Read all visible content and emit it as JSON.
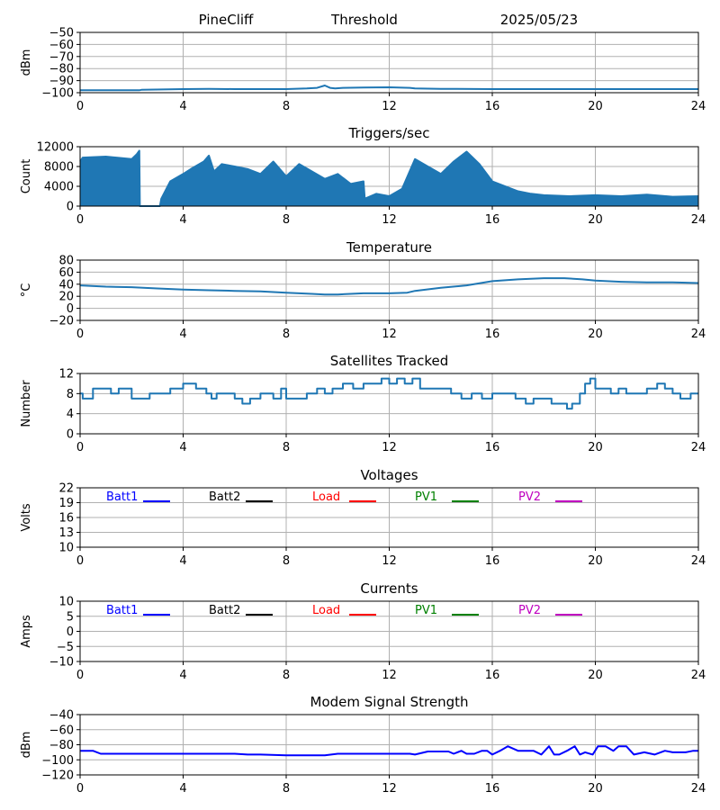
{
  "header": {
    "site": "PineCliff",
    "mode": "Threshold",
    "date": "2025/05/23"
  },
  "colors": {
    "series_default": "#1f77b4",
    "grid": "#b0b0b0",
    "batt1": "#0000ff",
    "batt2": "#000000",
    "load": "#ff0000",
    "pv1": "#008000",
    "pv2": "#bf00bf",
    "modem": "#0000ff"
  },
  "chart_data": [
    {
      "id": "threshold",
      "type": "line",
      "title": "",
      "ylabel": "dBm",
      "xlim": [
        0,
        24
      ],
      "xticks": [
        0,
        4,
        8,
        12,
        16,
        20,
        24
      ],
      "ylim": [
        -100,
        -50
      ],
      "yticks": [
        -100,
        -90,
        -80,
        -70,
        -60,
        -50
      ],
      "series": [
        {
          "color": "#1f77b4",
          "x": [
            0,
            2.3,
            2.4,
            4,
            5,
            6,
            7,
            8,
            8.8,
            9.2,
            9.5,
            9.7,
            9.9,
            10.2,
            11,
            12,
            12.8,
            13,
            14,
            16,
            18,
            20,
            22,
            24
          ],
          "y": [
            -98,
            -98,
            -97.5,
            -97,
            -96.8,
            -97,
            -97,
            -97,
            -96.5,
            -96,
            -94,
            -96,
            -96.5,
            -96,
            -95.7,
            -95.5,
            -96,
            -96.5,
            -96.8,
            -97,
            -97,
            -97,
            -97,
            -97
          ]
        }
      ]
    },
    {
      "id": "triggers",
      "type": "line",
      "title": "Triggers/sec",
      "ylabel": "Count",
      "xlim": [
        0,
        24
      ],
      "xticks": [
        0,
        4,
        8,
        12,
        16,
        20,
        24
      ],
      "ylim": [
        0,
        12000
      ],
      "yticks": [
        0,
        4000,
        8000,
        12000
      ],
      "fill_baseline": 0,
      "series": [
        {
          "color": "#1f77b4",
          "x": [
            0,
            0.1,
            1.0,
            2.0,
            2.2,
            2.3,
            2.32,
            3.1,
            3.15,
            3.5,
            4.0,
            4.3,
            4.8,
            5.0,
            5.2,
            5.5,
            6.0,
            6.5,
            7.0,
            7.5,
            8.0,
            8.5,
            9.0,
            9.5,
            10.0,
            10.5,
            11.0,
            11.05,
            11.5,
            12.0,
            12.5,
            13.0,
            13.5,
            14.0,
            14.5,
            15.0,
            15.5,
            16.0,
            16.5,
            17.0,
            17.5,
            18.0,
            19.0,
            20.0,
            21.0,
            22.0,
            23.0,
            24.0
          ],
          "y": [
            9000,
            9800,
            10000,
            9500,
            10500,
            11200,
            0,
            0,
            1500,
            5000,
            6500,
            7500,
            9000,
            10200,
            7000,
            8500,
            8000,
            7500,
            6500,
            9000,
            6000,
            8500,
            7000,
            5500,
            6500,
            4500,
            5000,
            1500,
            2500,
            2000,
            3500,
            9500,
            8000,
            6500,
            9000,
            11000,
            8500,
            5000,
            4000,
            3000,
            2500,
            2200,
            2000,
            2200,
            2000,
            2300,
            1900,
            2000
          ]
        }
      ]
    },
    {
      "id": "temperature",
      "type": "line",
      "title": "Temperature",
      "ylabel": "°C",
      "xlim": [
        0,
        24
      ],
      "xticks": [
        0,
        4,
        8,
        12,
        16,
        20,
        24
      ],
      "ylim": [
        -20,
        80
      ],
      "yticks": [
        -20,
        0,
        20,
        40,
        60,
        80
      ],
      "series": [
        {
          "color": "#1f77b4",
          "x": [
            0,
            1,
            2,
            3,
            4,
            5,
            6,
            7,
            8,
            9,
            9.5,
            10,
            10.5,
            11,
            12,
            12.7,
            13,
            14,
            15,
            16,
            17,
            18,
            18.8,
            19.5,
            20,
            21,
            22,
            23,
            24
          ],
          "y": [
            38,
            36,
            35,
            33,
            31,
            30,
            29,
            28,
            26,
            24,
            23,
            23,
            24,
            25,
            25,
            26,
            29,
            34,
            38,
            45,
            48,
            50,
            50,
            48,
            46,
            44,
            43,
            43,
            42
          ]
        }
      ]
    },
    {
      "id": "satellites",
      "type": "line",
      "title": "Satellites Tracked",
      "ylabel": "Number",
      "xlim": [
        0,
        24
      ],
      "xticks": [
        0,
        4,
        8,
        12,
        16,
        20,
        24
      ],
      "ylim": [
        0,
        12
      ],
      "yticks": [
        0,
        4,
        8,
        12
      ],
      "step": true,
      "series": [
        {
          "color": "#1f77b4",
          "x": [
            0,
            0.1,
            0.5,
            1.2,
            1.5,
            2.0,
            2.7,
            3.1,
            3.5,
            4.0,
            4.5,
            4.9,
            5.1,
            5.3,
            6.0,
            6.3,
            6.6,
            7.0,
            7.5,
            7.8,
            8.0,
            8.5,
            8.8,
            9.2,
            9.5,
            9.8,
            10.2,
            10.6,
            11.0,
            11.4,
            11.7,
            12.0,
            12.3,
            12.6,
            12.9,
            13.2,
            13.6,
            14.0,
            14.4,
            14.8,
            15.2,
            15.6,
            16.0,
            16.5,
            16.9,
            17.3,
            17.6,
            17.9,
            18.3,
            18.7,
            18.9,
            19.1,
            19.4,
            19.6,
            19.8,
            20.0,
            20.3,
            20.6,
            20.9,
            21.2,
            21.6,
            22.0,
            22.4,
            22.7,
            23.0,
            23.3,
            23.7,
            24
          ],
          "y": [
            8,
            7,
            9,
            8,
            9,
            7,
            8,
            8,
            9,
            10,
            9,
            8,
            7,
            8,
            7,
            6,
            7,
            8,
            7,
            9,
            7,
            7,
            8,
            9,
            8,
            9,
            10,
            9,
            10,
            10,
            11,
            10,
            11,
            10,
            11,
            9,
            9,
            9,
            8,
            7,
            8,
            7,
            8,
            8,
            7,
            6,
            7,
            7,
            6,
            6,
            5,
            6,
            8,
            10,
            11,
            9,
            9,
            8,
            9,
            8,
            8,
            9,
            10,
            9,
            8,
            7,
            8,
            8
          ]
        }
      ]
    },
    {
      "id": "voltages",
      "type": "line",
      "title": "Voltages",
      "ylabel": "Volts",
      "xlim": [
        0,
        24
      ],
      "xticks": [
        0,
        4,
        8,
        12,
        16,
        20,
        24
      ],
      "ylim": [
        10,
        22
      ],
      "yticks": [
        10,
        13,
        16,
        19,
        22
      ],
      "legend_position": "top",
      "legend": [
        {
          "label": "Batt1",
          "color": "#0000ff"
        },
        {
          "label": "Batt2",
          "color": "#000000"
        },
        {
          "label": "Load",
          "color": "#ff0000"
        },
        {
          "label": "PV1",
          "color": "#008000"
        },
        {
          "label": "PV2",
          "color": "#bf00bf"
        }
      ],
      "series": []
    },
    {
      "id": "currents",
      "type": "line",
      "title": "Currents",
      "ylabel": "Amps",
      "xlim": [
        0,
        24
      ],
      "xticks": [
        0,
        4,
        8,
        12,
        16,
        20,
        24
      ],
      "ylim": [
        -10,
        10
      ],
      "yticks": [
        -10,
        -5,
        0,
        5,
        10
      ],
      "legend_position": "top",
      "legend": [
        {
          "label": "Batt1",
          "color": "#0000ff"
        },
        {
          "label": "Batt2",
          "color": "#000000"
        },
        {
          "label": "Load",
          "color": "#ff0000"
        },
        {
          "label": "PV1",
          "color": "#008000"
        },
        {
          "label": "PV2",
          "color": "#bf00bf"
        }
      ],
      "series": []
    },
    {
      "id": "modem",
      "type": "line",
      "title": "Modem Signal Strength",
      "ylabel": "dBm",
      "xlim": [
        0,
        24
      ],
      "xticks": [
        0,
        4,
        8,
        12,
        16,
        20,
        24
      ],
      "ylim": [
        -120,
        -40
      ],
      "yticks": [
        -120,
        -100,
        -80,
        -60,
        -40
      ],
      "series": [
        {
          "color": "#0000ff",
          "x": [
            0,
            0.5,
            0.8,
            1.5,
            3,
            4,
            5,
            6,
            6.5,
            7,
            8,
            9,
            9.5,
            10,
            11,
            12,
            12.8,
            13,
            13.5,
            14,
            14.3,
            14.5,
            14.8,
            15,
            15.3,
            15.6,
            15.8,
            16,
            16.3,
            16.6,
            17,
            17.3,
            17.6,
            17.9,
            18.2,
            18.4,
            18.6,
            18.9,
            19.2,
            19.4,
            19.6,
            19.9,
            20.1,
            20.4,
            20.7,
            20.9,
            21.2,
            21.5,
            21.9,
            22.3,
            22.7,
            23.0,
            23.5,
            23.8,
            24
          ],
          "y": [
            -88,
            -88,
            -92,
            -92,
            -92,
            -92,
            -92,
            -92,
            -93,
            -93,
            -94,
            -94,
            -94,
            -92,
            -92,
            -92,
            -92,
            -93,
            -89,
            -89,
            -89,
            -92,
            -88,
            -92,
            -92,
            -88,
            -88,
            -93,
            -88,
            -82,
            -88,
            -88,
            -88,
            -93,
            -82,
            -93,
            -93,
            -88,
            -82,
            -93,
            -90,
            -93,
            -82,
            -82,
            -88,
            -82,
            -82,
            -93,
            -90,
            -93,
            -88,
            -90,
            -90,
            -88,
            -88
          ]
        }
      ]
    }
  ]
}
